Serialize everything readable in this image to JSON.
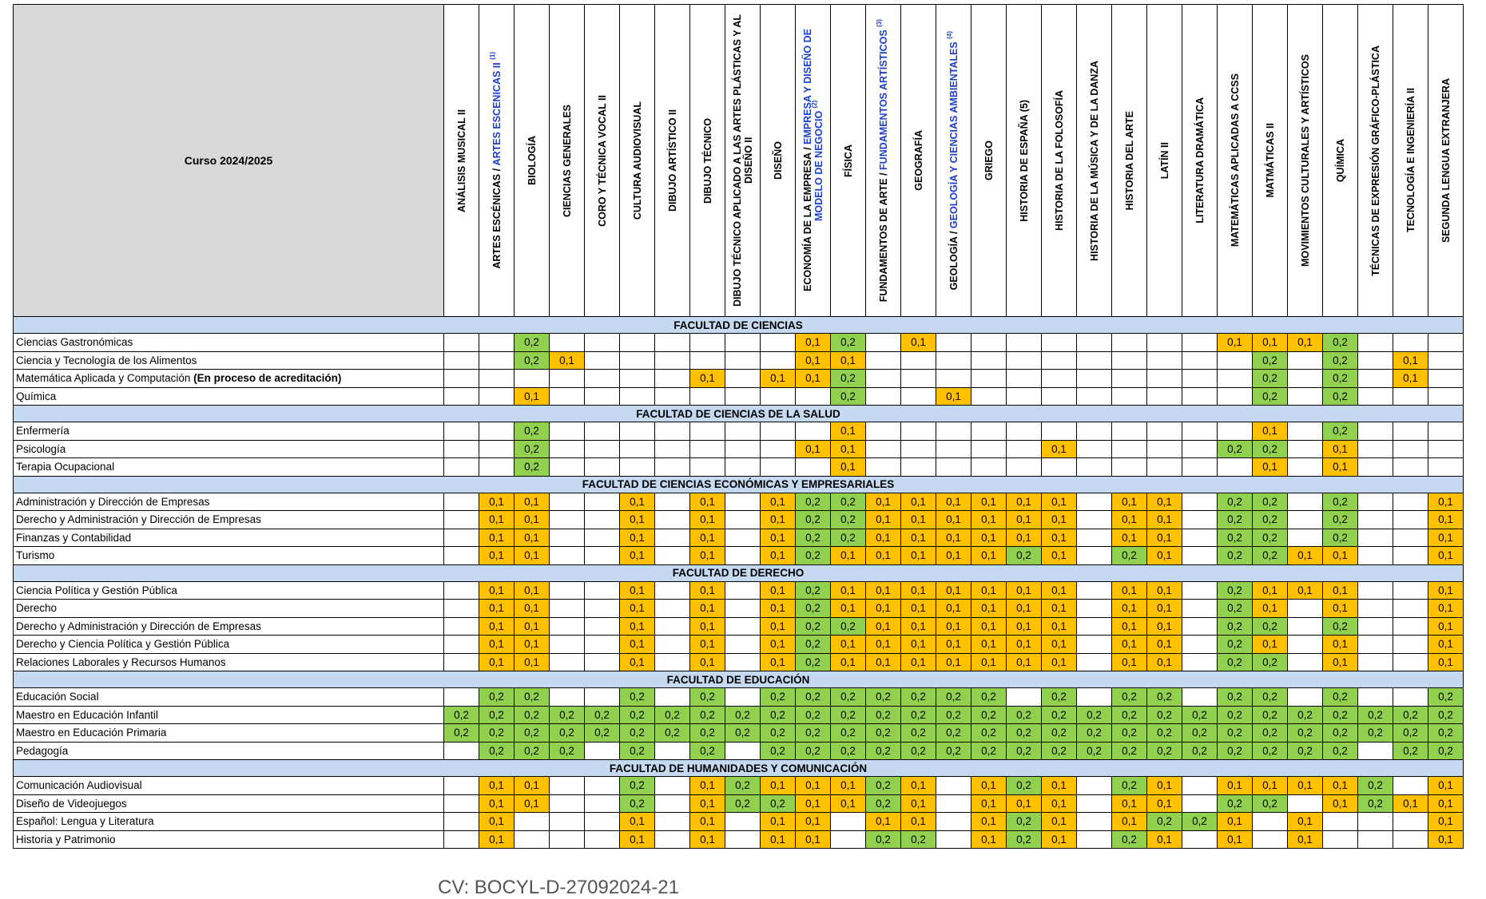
{
  "title": "Curso 2024/2025",
  "footer": "CV: BOCYL-D-27092024-21",
  "colors": {
    "orange_0_1": "#ffc000",
    "green_0_2": "#92d050",
    "faculty_band": "#c5d9f1",
    "header_corner": "#d9d9d9",
    "link_blue": "#1a3fd6"
  },
  "subjects": [
    {
      "pre": "ANÁLISIS MUSICAL II"
    },
    {
      "pre": "ARTES ESCÉNICAS / ",
      "blue": "ARTES ESCENICAS II",
      "sup": "(1)"
    },
    {
      "pre": "BIOLOGÍA"
    },
    {
      "pre": "CIENCIAS GENERALES"
    },
    {
      "pre": "CORO Y TÉCNICA VOCAL II"
    },
    {
      "pre": "CULTURA AUDIOVISUAL"
    },
    {
      "pre": "DIBUJO ARTÍSTICO II"
    },
    {
      "pre": "DIBUJO TÉCNICO"
    },
    {
      "pre": "DIBUJO TÉCNICO APLICADO A LAS ARTES PLÁSTICAS Y AL DISEÑO II"
    },
    {
      "pre": "DISEÑO"
    },
    {
      "pre": "ECONOMÍA DE LA EMPRESA / ",
      "blue": "EMPRESA Y DISEÑO DE MODELO DE NEGOCIO",
      "sup": "(2)"
    },
    {
      "pre": "FÍSICA"
    },
    {
      "pre": "FUNDAMENTOS DE ARTE / ",
      "blue": "FUNDAMENTOS ARTÍSTICOS",
      "sup": "(3)"
    },
    {
      "pre": "GEOGRAFÍA"
    },
    {
      "pre": "GEOLOGÍA / ",
      "blue": "GEOLOGÍA Y CIENCIAS AMBIENTALES",
      "sup": "(4)"
    },
    {
      "pre": "GRIEGO"
    },
    {
      "pre": "HISTORIA DE ESPAÑA (5)"
    },
    {
      "pre": "HISTORIA DE LA FOLOSOFÍA"
    },
    {
      "pre": "HISTORIA DE LA MÚSICA Y DE LA DANZA"
    },
    {
      "pre": "HISTORIA DEL ARTE"
    },
    {
      "pre": "LATÍN II"
    },
    {
      "pre": "LITERATURA DRAMÁTICA"
    },
    {
      "pre": "MATEMÁTICAS APLICADAS A CCSS"
    },
    {
      "pre": "MATMÁTICAS II"
    },
    {
      "pre": "MOVIMIENTOS CULTURALES Y ARTÍSTICOS"
    },
    {
      "pre": "QUÍMICA"
    },
    {
      "pre": "TÉCNICAS DE EXPRESIÓN GRÁFICO-PLÁSTICA"
    },
    {
      "pre": "TECNOLOGÍA E INGENIERÍA II"
    },
    {
      "pre": "SEGUNDA LENGUA EXTRANJERA"
    }
  ],
  "faculties": [
    {
      "name": "FACULTAD DE CIENCIAS",
      "rows": [
        {
          "name": "Ciencias Gastronómicas",
          "values": [
            "",
            "",
            "0,2",
            "",
            "",
            "",
            "",
            "",
            "",
            "",
            "0,1",
            "0,2",
            "",
            "0,1",
            "",
            "",
            "",
            "",
            "",
            "",
            "",
            "",
            "0,1",
            "0,1",
            "0,1",
            "0,2",
            "",
            "",
            ""
          ]
        },
        {
          "name": "Ciencia y Tecnología de los Alimentos",
          "values": [
            "",
            "",
            "0,2",
            "0,1",
            "",
            "",
            "",
            "",
            "",
            "",
            "0,1",
            "0,1",
            "",
            "",
            "",
            "",
            "",
            "",
            "",
            "",
            "",
            "",
            "",
            "0,2",
            "",
            "0,2",
            "",
            "0,1",
            ""
          ]
        },
        {
          "name": "Matemática Aplicada y Computación ",
          "bold": "(En proceso de acreditación)",
          "values": [
            "",
            "",
            "",
            "",
            "",
            "",
            "",
            "0,1",
            "",
            "0,1",
            "0,1",
            "0,2",
            "",
            "",
            "",
            "",
            "",
            "",
            "",
            "",
            "",
            "",
            "",
            "0,2",
            "",
            "0,2",
            "",
            "0,1",
            ""
          ]
        },
        {
          "name": "Química",
          "values": [
            "",
            "",
            "0,1",
            "",
            "",
            "",
            "",
            "",
            "",
            "",
            "",
            "0,2",
            "",
            "",
            "0,1",
            "",
            "",
            "",
            "",
            "",
            "",
            "",
            "",
            "0,2",
            "",
            "0,2",
            "",
            "",
            ""
          ]
        }
      ]
    },
    {
      "name": "FACULTAD DE CIENCIAS DE LA SALUD",
      "rows": [
        {
          "name": "Enfermería",
          "values": [
            "",
            "",
            "0,2",
            "",
            "",
            "",
            "",
            "",
            "",
            "",
            "",
            "0,1",
            "",
            "",
            "",
            "",
            "",
            "",
            "",
            "",
            "",
            "",
            "",
            "0,1",
            "",
            "0,2",
            "",
            "",
            ""
          ]
        },
        {
          "name": "Psicología",
          "values": [
            "",
            "",
            "0,2",
            "",
            "",
            "",
            "",
            "",
            "",
            "",
            "0,1",
            "0,1",
            "",
            "",
            "",
            "",
            "",
            "0,1",
            "",
            "",
            "",
            "",
            "0,2",
            "0,2",
            "",
            "0,1",
            "",
            "",
            ""
          ]
        },
        {
          "name": "Terapia Ocupacional",
          "values": [
            "",
            "",
            "0,2",
            "",
            "",
            "",
            "",
            "",
            "",
            "",
            "",
            "0,1",
            "",
            "",
            "",
            "",
            "",
            "",
            "",
            "",
            "",
            "",
            "",
            "0,1",
            "",
            "0,1",
            "",
            "",
            ""
          ]
        }
      ]
    },
    {
      "name": "FACULTAD DE CIENCIAS ECONÓMICAS Y EMPRESARIALES",
      "rows": [
        {
          "name": "Administración y Dirección de Empresas",
          "values": [
            "",
            "0,1",
            "0,1",
            "",
            "",
            "0,1",
            "",
            "0,1",
            "",
            "0,1",
            "0,2",
            "0,2",
            "0,1",
            "0,1",
            "0,1",
            "0,1",
            "0,1",
            "0,1",
            "",
            "0,1",
            "0,1",
            "",
            "0,2",
            "0,2",
            "",
            "0,2",
            "",
            "",
            "0,1"
          ]
        },
        {
          "name": "Derecho y Administración y Dirección de Empresas",
          "values": [
            "",
            "0,1",
            "0,1",
            "",
            "",
            "0,1",
            "",
            "0,1",
            "",
            "0,1",
            "0,2",
            "0,2",
            "0,1",
            "0,1",
            "0,1",
            "0,1",
            "0,1",
            "0,1",
            "",
            "0,1",
            "0,1",
            "",
            "0,2",
            "0,2",
            "",
            "0,2",
            "",
            "",
            "0,1"
          ]
        },
        {
          "name": "Finanzas y Contabilidad",
          "values": [
            "",
            "0,1",
            "0,1",
            "",
            "",
            "0,1",
            "",
            "0,1",
            "",
            "0,1",
            "0,2",
            "0,2",
            "0,1",
            "0,1",
            "0,1",
            "0,1",
            "0,1",
            "0,1",
            "",
            "0,1",
            "0,1",
            "",
            "0,2",
            "0,2",
            "",
            "0,2",
            "",
            "",
            "0,1"
          ]
        },
        {
          "name": "Turismo",
          "values": [
            "",
            "0,1",
            "0,1",
            "",
            "",
            "0,1",
            "",
            "0,1",
            "",
            "0,1",
            "0,2",
            "0,1",
            "0,1",
            "0,1",
            "0,1",
            "0,1",
            "0,2",
            "0,1",
            "",
            "0,2",
            "0,1",
            "",
            "0,2",
            "0,2",
            "0,1",
            "0,1",
            "",
            "",
            "0,1"
          ]
        }
      ]
    },
    {
      "name": "FACULTAD DE DERECHO",
      "rows": [
        {
          "name": "Ciencia Política y Gestión Pública",
          "values": [
            "",
            "0,1",
            "0,1",
            "",
            "",
            "0,1",
            "",
            "0,1",
            "",
            "0,1",
            "0,2",
            "0,1",
            "0,1",
            "0,1",
            "0,1",
            "0,1",
            "0,1",
            "0,1",
            "",
            "0,1",
            "0,1",
            "",
            "0,2",
            "0,1",
            "0,1",
            "0,1",
            "",
            "",
            "0,1"
          ]
        },
        {
          "name": "Derecho",
          "values": [
            "",
            "0,1",
            "0,1",
            "",
            "",
            "0,1",
            "",
            "0,1",
            "",
            "0,1",
            "0,2",
            "0,1",
            "0,1",
            "0,1",
            "0,1",
            "0,1",
            "0,1",
            "0,1",
            "",
            "0,1",
            "0,1",
            "",
            "0,2",
            "0,1",
            "",
            "0,1",
            "",
            "",
            "0,1"
          ]
        },
        {
          "name": "Derecho y Administración y Dirección de Empresas",
          "values": [
            "",
            "0,1",
            "0,1",
            "",
            "",
            "0,1",
            "",
            "0,1",
            "",
            "0,1",
            "0,2",
            "0,2",
            "0,1",
            "0,1",
            "0,1",
            "0,1",
            "0,1",
            "0,1",
            "",
            "0,1",
            "0,1",
            "",
            "0,2",
            "0,2",
            "",
            "0,2",
            "",
            "",
            "0,1"
          ]
        },
        {
          "name": "Derecho y Ciencia Política y Gestión Pública",
          "values": [
            "",
            "0,1",
            "0,1",
            "",
            "",
            "0,1",
            "",
            "0,1",
            "",
            "0,1",
            "0,2",
            "0,1",
            "0,1",
            "0,1",
            "0,1",
            "0,1",
            "0,1",
            "0,1",
            "",
            "0,1",
            "0,1",
            "",
            "0,2",
            "0,1",
            "",
            "0,1",
            "",
            "",
            "0,1"
          ]
        },
        {
          "name": "Relaciones Laborales y Recursos Humanos",
          "values": [
            "",
            "0,1",
            "0,1",
            "",
            "",
            "0,1",
            "",
            "0,1",
            "",
            "0,1",
            "0,2",
            "0,1",
            "0,1",
            "0,1",
            "0,1",
            "0,1",
            "0,1",
            "0,1",
            "",
            "0,1",
            "0,1",
            "",
            "0,2",
            "0,2",
            "",
            "0,1",
            "",
            "",
            "0,1"
          ]
        }
      ]
    },
    {
      "name": "FACULTAD DE EDUCACIÓN",
      "rows": [
        {
          "name": "Educación Social",
          "values": [
            "",
            "0,2",
            "0,2",
            "",
            "",
            "0,2",
            "",
            "0,2",
            "",
            "0,2",
            "0,2",
            "0,2",
            "0,2",
            "0,2",
            "0,2",
            "0,2",
            "",
            "0,2",
            "",
            "0,2",
            "0,2",
            "",
            "0,2",
            "0,2",
            "",
            "0,2",
            "",
            "",
            "0,2"
          ]
        },
        {
          "name": "Maestro en Educación Infantil",
          "values": [
            "0,2",
            "0,2",
            "0,2",
            "0,2",
            "0,2",
            "0,2",
            "0,2",
            "0,2",
            "0,2",
            "0,2",
            "0,2",
            "0,2",
            "0,2",
            "0,2",
            "0,2",
            "0,2",
            "0,2",
            "0,2",
            "0,2",
            "0,2",
            "0,2",
            "0,2",
            "0,2",
            "0,2",
            "0,2",
            "0,2",
            "0,2",
            "0,2",
            "0,2"
          ]
        },
        {
          "name": "Maestro en Educación Primaria",
          "values": [
            "0,2",
            "0,2",
            "0,2",
            "0,2",
            "0,2",
            "0,2",
            "0,2",
            "0,2",
            "0,2",
            "0,2",
            "0,2",
            "0,2",
            "0,2",
            "0,2",
            "0,2",
            "0,2",
            "0,2",
            "0,2",
            "0,2",
            "0,2",
            "0,2",
            "0,2",
            "0,2",
            "0,2",
            "0,2",
            "0,2",
            "0,2",
            "0,2",
            "0,2"
          ]
        },
        {
          "name": "Pedagogía",
          "values": [
            "",
            "0,2",
            "0,2",
            "0,2",
            "",
            "0,2",
            "",
            "0,2",
            "",
            "0,2",
            "0,2",
            "0,2",
            "0,2",
            "0,2",
            "0,2",
            "0,2",
            "0,2",
            "0,2",
            "0,2",
            "0,2",
            "0,2",
            "0,2",
            "0,2",
            "0,2",
            "0,2",
            "0,2",
            "",
            "0,2",
            "0,2"
          ]
        }
      ]
    },
    {
      "name": "FACULTAD DE HUMANIDADES Y COMUNICACIÓN",
      "rows": [
        {
          "name": "Comunicación Audiovisual",
          "values": [
            "",
            "0,1",
            "0,1",
            "",
            "",
            "0,2",
            "",
            "0,1",
            "0,2",
            "0,1",
            "0,1",
            "0,1",
            "0,2",
            "0,1",
            "",
            "0,1",
            "0,2",
            "0,1",
            "",
            "0,2",
            "0,1",
            "",
            "0,1",
            "0,1",
            "0,1",
            "0,1",
            "0,2",
            "",
            "0,1"
          ]
        },
        {
          "name": "Diseño de Videojuegos",
          "values": [
            "",
            "0,1",
            "0,1",
            "",
            "",
            "0,2",
            "",
            "0,1",
            "0,2",
            "0,2",
            "0,1",
            "0,1",
            "0,2",
            "0,1",
            "",
            "0,1",
            "0,1",
            "0,1",
            "",
            "0,1",
            "0,1",
            "",
            "0,2",
            "0,2",
            "",
            "0,1",
            "0,2",
            "0,1",
            "0,1"
          ]
        },
        {
          "name": "Español: Lengua y Literatura",
          "values": [
            "",
            "0,1",
            "",
            "",
            "",
            "0,1",
            "",
            "0,1",
            "",
            "0,1",
            "0,1",
            "",
            "0,1",
            "0,1",
            "",
            "0,1",
            "0,2",
            "0,1",
            "",
            "0,1",
            "0,2",
            "0,2",
            "0,1",
            "",
            "0,1",
            "",
            "",
            "",
            "0,1"
          ]
        },
        {
          "name": "Historia y Patrimonio",
          "values": [
            "",
            "0,1",
            "",
            "",
            "",
            "0,1",
            "",
            "0,1",
            "",
            "0,1",
            "0,1",
            "",
            "0,2",
            "0,2",
            "",
            "0,1",
            "0,2",
            "0,1",
            "",
            "0,2",
            "0,1",
            "",
            "0,1",
            "",
            "0,1",
            "",
            "",
            "",
            "0,1"
          ]
        }
      ]
    }
  ]
}
